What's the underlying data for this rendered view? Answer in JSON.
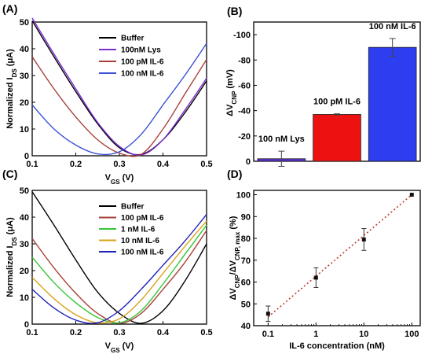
{
  "figure_labels": [
    "(A)",
    "(B)",
    "(C)",
    "(D)"
  ],
  "axis_labels": {
    "a_y_pre": "Normalized I",
    "a_y_sub": "DS",
    "a_y_post": " (μA)",
    "a_x_pre": "V",
    "a_x_sub": "GS",
    "a_x_post": " (V)",
    "b_y_pre": "ΔV",
    "b_y_sub": "CNP",
    "b_y_post": " (mV)",
    "c_y_pre": "Normalized I",
    "c_y_sub": "DS",
    "c_y_post": " (μA)",
    "c_x_pre": "V",
    "c_x_sub": "GS",
    "c_x_post": " (V)",
    "d_y_a": "ΔV",
    "d_y_a_sub": "CNP",
    "d_y_b": "/ΔV",
    "d_y_b_sub": "CNP, max",
    "d_y_c": " (%)",
    "d_x": "IL-6 concentration (nM)"
  },
  "chart_data": [
    {
      "type": "line",
      "panel": "A",
      "xlabel": "VGS (V)",
      "ylabel": "Normalized IDS (μA)",
      "xlim": [
        0.1,
        0.5
      ],
      "ylim": [
        0,
        50
      ],
      "xticks": [
        "0.1",
        "0.2",
        "0.3",
        "0.4",
        "0.5"
      ],
      "yticks": [
        "0",
        "10",
        "20",
        "30",
        "40",
        "50"
      ],
      "legend_position": "top-right",
      "series": [
        {
          "name": "Buffer",
          "color": "#000000",
          "x": [
            0.1,
            0.15,
            0.2,
            0.25,
            0.3,
            0.35,
            0.4,
            0.45,
            0.5
          ],
          "y": [
            50.5,
            37,
            24,
            12,
            3,
            0.5,
            6,
            16,
            28
          ]
        },
        {
          "name": "100nM Lys",
          "color": "#7b2fd4",
          "x": [
            0.1,
            0.15,
            0.2,
            0.25,
            0.3,
            0.35,
            0.4,
            0.45,
            0.5
          ],
          "y": [
            51.5,
            38,
            25,
            12.5,
            3.5,
            0.3,
            6,
            17,
            29
          ]
        },
        {
          "name": "100 pM IL-6",
          "color": "#a8403a",
          "x": [
            0.1,
            0.15,
            0.2,
            0.25,
            0.3,
            0.35,
            0.4,
            0.45,
            0.5
          ],
          "y": [
            37,
            25,
            14.5,
            6,
            1,
            0.5,
            10,
            23,
            36
          ]
        },
        {
          "name": "100 nM IL-6",
          "color": "#3a50d6",
          "x": [
            0.1,
            0.15,
            0.2,
            0.25,
            0.3,
            0.35,
            0.4,
            0.45,
            0.5
          ],
          "y": [
            19,
            10,
            4,
            0.7,
            1.5,
            8,
            19,
            30,
            42
          ]
        }
      ]
    },
    {
      "type": "bar",
      "panel": "B",
      "ylabel": "ΔVCNP (mV)",
      "ylim": [
        0,
        -110
      ],
      "yticks": [
        "0",
        "-20",
        "-40",
        "-60",
        "-80",
        "-100"
      ],
      "categories": [
        "100 nM Lys",
        "100 pM IL-6",
        "100 nM IL-6"
      ],
      "values": [
        -2,
        -37,
        -90
      ],
      "errors": [
        6,
        0.5,
        7
      ],
      "colors": [
        "#5b2fd0",
        "#ee1111",
        "#2d3ef0"
      ]
    },
    {
      "type": "line",
      "panel": "C",
      "xlabel": "VGS (V)",
      "ylabel": "Normalized IDS (μA)",
      "xlim": [
        0.1,
        0.5
      ],
      "ylim": [
        0,
        50
      ],
      "xticks": [
        "0.1",
        "0.2",
        "0.3",
        "0.4",
        "0.5"
      ],
      "yticks": [
        "0",
        "10",
        "20",
        "30",
        "40",
        "50"
      ],
      "legend_position": "top-right",
      "series": [
        {
          "name": "Buffer",
          "color": "#000000",
          "x": [
            0.1,
            0.15,
            0.2,
            0.25,
            0.3,
            0.35,
            0.4,
            0.45,
            0.5
          ],
          "y": [
            49.5,
            37,
            24,
            12,
            4,
            0.3,
            5,
            16,
            30
          ]
        },
        {
          "name": "100 pM IL-6",
          "color": "#a8403a",
          "x": [
            0.1,
            0.15,
            0.2,
            0.25,
            0.3,
            0.35,
            0.4,
            0.45,
            0.5
          ],
          "y": [
            32,
            21,
            11.5,
            4,
            0.3,
            4,
            13,
            23,
            35
          ]
        },
        {
          "name": "1 nM IL-6",
          "color": "#35c535",
          "x": [
            0.1,
            0.15,
            0.2,
            0.25,
            0.3,
            0.35,
            0.4,
            0.45,
            0.5
          ],
          "y": [
            25,
            15.5,
            8,
            2.5,
            0.5,
            5,
            15,
            26,
            37
          ]
        },
        {
          "name": "10 nM IL-6",
          "color": "#d9a21a",
          "x": [
            0.1,
            0.15,
            0.2,
            0.25,
            0.3,
            0.35,
            0.4,
            0.45,
            0.5
          ],
          "y": [
            17.5,
            9.5,
            3.5,
            0.5,
            2,
            9,
            19,
            29,
            38.5
          ]
        },
        {
          "name": "100 nM IL-6",
          "color": "#2222b8",
          "x": [
            0.1,
            0.15,
            0.2,
            0.25,
            0.3,
            0.35,
            0.4,
            0.45,
            0.5
          ],
          "y": [
            13,
            6,
            1.5,
            0.5,
            5,
            13,
            22,
            31,
            41
          ]
        }
      ]
    },
    {
      "type": "scatter",
      "panel": "D",
      "xlabel": "IL-6 concentration (nM)",
      "ylabel": "ΔVCNP/ΔVCNP, max (%)",
      "xscale": "log",
      "xlim": [
        0.05,
        150
      ],
      "ylim": [
        40,
        102
      ],
      "xticks": [
        "0.1",
        "1",
        "10",
        "100"
      ],
      "yticks": [
        "40",
        "50",
        "60",
        "70",
        "80",
        "90",
        "100"
      ],
      "x": [
        0.1,
        1,
        10,
        100
      ],
      "y": [
        45.5,
        62,
        79.5,
        100
      ],
      "errors": [
        3.5,
        4.5,
        5,
        0
      ],
      "fit_line": {
        "style": "dotted",
        "color": "#c0392b",
        "x": [
          0.1,
          100
        ],
        "y": [
          44,
          100
        ]
      }
    }
  ]
}
